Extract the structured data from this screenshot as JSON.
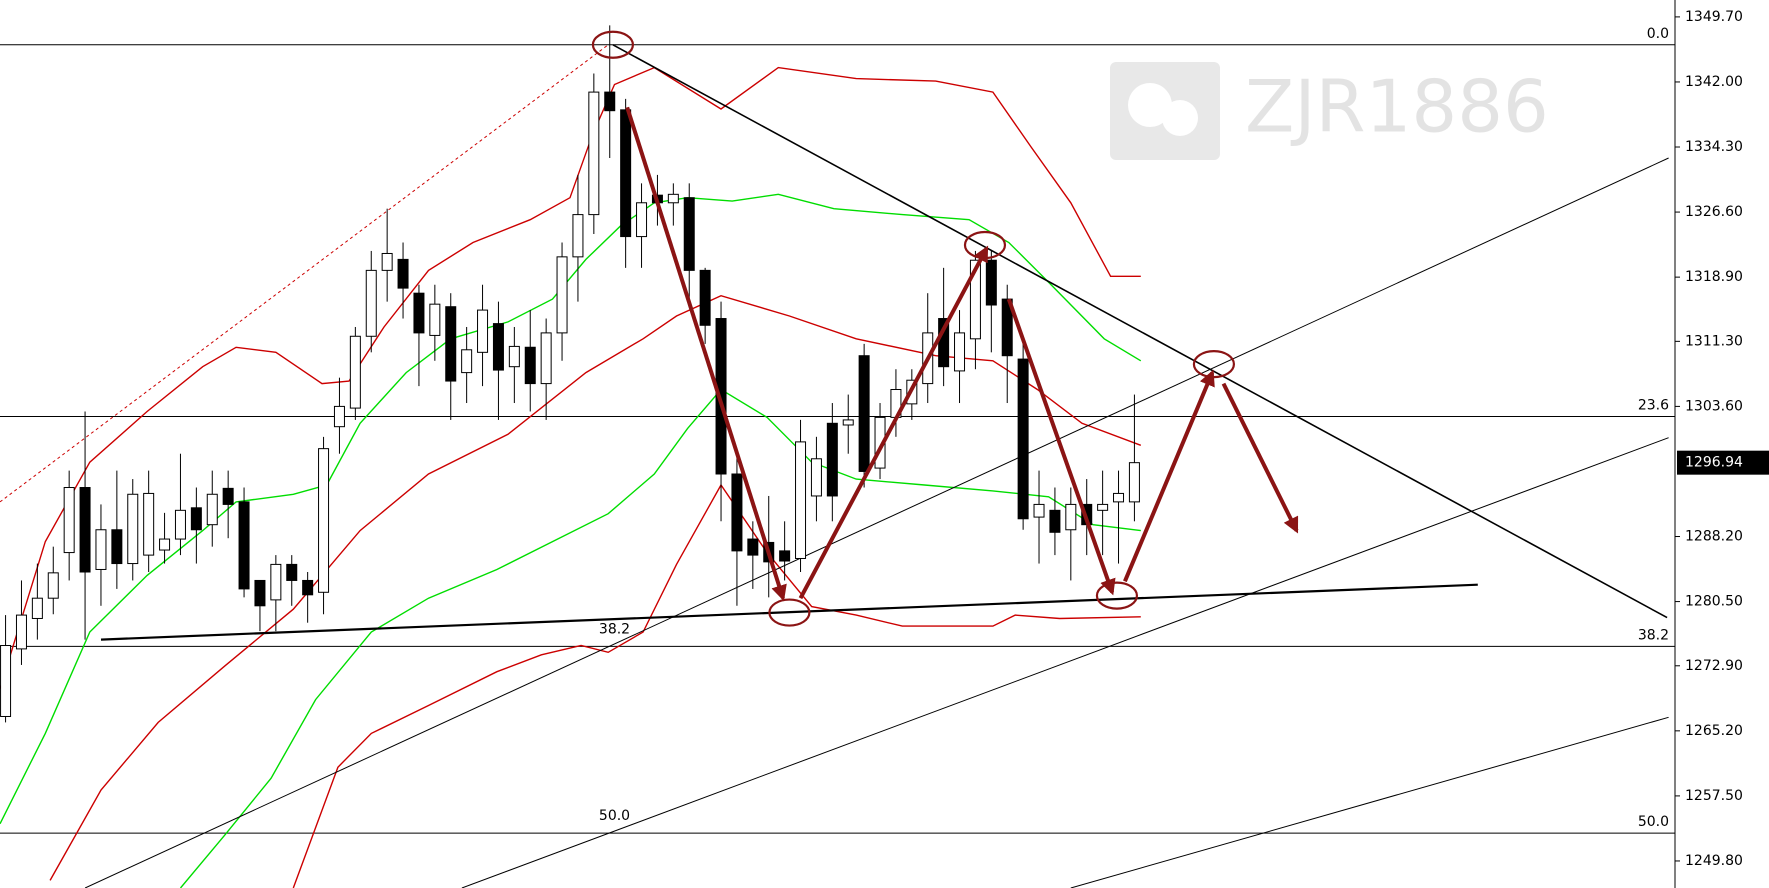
{
  "chart_data": {
    "type": "candlestick",
    "watermark": "ZJR1886",
    "xlim": [
      -0.35,
      105.0
    ],
    "ylim": [
      1246.6,
      1351.7
    ],
    "yticks": [
      {
        "value": 1349.7,
        "label": "1349.70"
      },
      {
        "value": 1342.0,
        "label": "1342.00"
      },
      {
        "value": 1334.3,
        "label": "1334.30"
      },
      {
        "value": 1326.6,
        "label": "1326.60"
      },
      {
        "value": 1318.9,
        "label": "1318.90"
      },
      {
        "value": 1311.3,
        "label": "1311.30"
      },
      {
        "value": 1303.6,
        "label": "1303.60"
      },
      {
        "value": 1288.2,
        "label": "1288.20"
      },
      {
        "value": 1280.5,
        "label": "1280.50"
      },
      {
        "value": 1272.9,
        "label": "1272.90"
      },
      {
        "value": 1265.2,
        "label": "1265.20"
      },
      {
        "value": 1257.5,
        "label": "1257.50"
      },
      {
        "value": 1249.8,
        "label": "1249.80"
      }
    ],
    "last_price": 1296.94,
    "up_color": "#ffffff",
    "down_color": "#000000",
    "open": [
      1266.9,
      1274.9,
      1278.5,
      1280.9,
      1286.3,
      1294.0,
      1284.3,
      1289.0,
      1285.0,
      1286.0,
      1286.6,
      1287.9,
      1291.6,
      1289.6,
      1293.9,
      1292.3,
      1283.0,
      1280.7,
      1284.9,
      1283.0,
      1281.6,
      1301.2,
      1303.4,
      1311.9,
      1319.7,
      1321.0,
      1317.0,
      1312.0,
      1315.4,
      1307.6,
      1310.0,
      1313.4,
      1308.3,
      1310.6,
      1306.3,
      1312.3,
      1321.3,
      1326.3,
      1340.8,
      1338.7,
      1323.7,
      1328.6,
      1327.7,
      1328.3,
      1319.7,
      1314.0,
      1295.6,
      1287.9,
      1287.5,
      1286.5,
      1285.6,
      1293.0,
      1301.6,
      1301.4,
      1309.6,
      1296.3,
      1302.3,
      1303.9,
      1306.3,
      1314.0,
      1307.8,
      1311.6,
      1320.9,
      1316.3,
      1309.2,
      1290.5,
      1291.3,
      1289.0,
      1292.0,
      1291.3,
      1292.3,
      1292.3
    ],
    "high": [
      1278.9,
      1283.0,
      1285.0,
      1287.0,
      1296.0,
      1303.0,
      1292.0,
      1296.0,
      1295.0,
      1296.0,
      1291.0,
      1298.0,
      1294.0,
      1296.0,
      1296.0,
      1294.0,
      1283.0,
      1286.0,
      1286.0,
      1284.0,
      1300.0,
      1307.0,
      1313.0,
      1322.0,
      1327.0,
      1323.0,
      1318.0,
      1318.0,
      1317.0,
      1313.0,
      1318.0,
      1316.0,
      1313.0,
      1315.0,
      1314.0,
      1323.0,
      1331.0,
      1343.0,
      1348.7,
      1340.0,
      1330.0,
      1331.0,
      1330.0,
      1330.0,
      1320.0,
      1316.0,
      1298.0,
      1290.0,
      1293.0,
      1290.0,
      1302.0,
      1300.0,
      1304.0,
      1305.0,
      1311.0,
      1304.0,
      1308.0,
      1308.0,
      1317.0,
      1320.0,
      1315.0,
      1322.0,
      1322.0,
      1318.0,
      1311.0,
      1296.0,
      1294.0,
      1294.0,
      1295.0,
      1296.0,
      1296.0,
      1305.0
    ],
    "low": [
      1266.2,
      1273.0,
      1276.0,
      1279.0,
      1283.0,
      1276.0,
      1280.0,
      1282.0,
      1283.0,
      1284.0,
      1285.0,
      1286.0,
      1285.0,
      1287.0,
      1288.0,
      1281.0,
      1277.0,
      1277.0,
      1280.0,
      1278.0,
      1279.0,
      1298.0,
      1302.0,
      1310.0,
      1316.0,
      1314.0,
      1306.0,
      1309.0,
      1302.0,
      1304.0,
      1306.0,
      1302.0,
      1304.0,
      1303.0,
      1302.0,
      1309.0,
      1316.0,
      1324.0,
      1333.0,
      1320.0,
      1320.0,
      1325.0,
      1325.0,
      1316.0,
      1311.0,
      1290.0,
      1280.0,
      1282.0,
      1281.0,
      1283.0,
      1284.0,
      1290.0,
      1290.0,
      1298.0,
      1294.0,
      1295.0,
      1300.0,
      1302.0,
      1304.0,
      1306.0,
      1304.0,
      1308.0,
      1310.0,
      1304.0,
      1289.0,
      1285.0,
      1286.0,
      1283.0,
      1286.0,
      1286.0,
      1285.0,
      1290.0
    ],
    "close": [
      1275.3,
      1278.9,
      1280.9,
      1283.9,
      1294.0,
      1284.0,
      1289.0,
      1285.0,
      1293.2,
      1293.3,
      1287.9,
      1291.3,
      1289.0,
      1293.2,
      1292.0,
      1282.0,
      1280.0,
      1284.9,
      1283.0,
      1281.3,
      1298.6,
      1303.6,
      1311.9,
      1319.7,
      1321.7,
      1317.6,
      1312.3,
      1315.7,
      1306.6,
      1310.3,
      1315.0,
      1307.9,
      1310.7,
      1306.3,
      1312.3,
      1321.3,
      1326.3,
      1340.8,
      1338.6,
      1323.7,
      1327.7,
      1327.7,
      1328.7,
      1319.7,
      1313.2,
      1295.6,
      1286.5,
      1286.0,
      1285.2,
      1285.3,
      1299.4,
      1297.4,
      1293.0,
      1302.0,
      1295.9,
      1302.3,
      1305.6,
      1306.7,
      1312.3,
      1308.3,
      1312.3,
      1320.9,
      1315.6,
      1309.6,
      1290.3,
      1292.0,
      1288.7,
      1292.0,
      1289.6,
      1292.0,
      1293.3,
      1296.94
    ],
    "bands": [
      {
        "color": "#cc0000",
        "x": [
          -0.35,
          2.5,
          5.3,
          8.9,
          12.4,
          14.5,
          17.0,
          19.9,
          21.6,
          23.8,
          26.6,
          29.4,
          33.0,
          35.5,
          36.9,
          38.3,
          40.8,
          45.0,
          48.6,
          53.5,
          58.5,
          62.1,
          64.5,
          67.0,
          69.5,
          71.4
        ],
        "values": [
          1270.2,
          1287.6,
          1297.0,
          1303.0,
          1308.3,
          1310.6,
          1310.0,
          1306.3,
          1306.6,
          1313.0,
          1319.7,
          1323.0,
          1325.7,
          1328.3,
          1335.7,
          1341.7,
          1343.7,
          1338.8,
          1343.7,
          1342.4,
          1342.1,
          1340.8,
          1334.3,
          1327.7,
          1319.0,
          1319.0
        ]
      },
      {
        "color": "#cc0000",
        "x": [
          2.8,
          6.0,
          9.6,
          13.8,
          18.1,
          22.3,
          26.6,
          31.6,
          36.5,
          40.1,
          42.2,
          45.0,
          49.3,
          53.5,
          58.5,
          62.1,
          64.9,
          67.7,
          71.4
        ],
        "values": [
          1247.5,
          1258.2,
          1266.2,
          1272.9,
          1279.6,
          1288.9,
          1295.6,
          1300.3,
          1307.6,
          1311.6,
          1314.3,
          1316.7,
          1314.3,
          1311.6,
          1309.6,
          1309.0,
          1305.6,
          1301.6,
          1299.0
        ]
      },
      {
        "color": "#cc0000",
        "x": [
          18.1,
          20.9,
          23.0,
          26.6,
          30.9,
          33.7,
          36.2,
          37.9,
          40.1,
          42.2,
          45.0,
          47.9,
          50.7,
          53.5,
          56.4,
          62.1,
          63.5,
          66.3,
          71.4
        ],
        "values": [
          1246.6,
          1260.9,
          1264.9,
          1268.2,
          1272.2,
          1274.2,
          1275.3,
          1274.5,
          1276.9,
          1284.9,
          1294.3,
          1286.3,
          1279.9,
          1278.9,
          1277.6,
          1277.6,
          1278.9,
          1278.5,
          1278.7
        ]
      },
      {
        "color": "#00dd00",
        "x": [
          -0.35,
          2.5,
          5.3,
          8.9,
          12.4,
          14.5,
          18.1,
          20.2,
          22.3,
          25.2,
          28.0,
          31.6,
          34.4,
          36.5,
          38.7,
          40.8,
          42.9,
          45.7,
          48.6,
          52.1,
          56.4,
          60.6,
          63.1,
          65.6,
          69.1,
          71.4
        ],
        "values": [
          1254.2,
          1264.9,
          1276.9,
          1283.6,
          1288.9,
          1292.3,
          1293.2,
          1294.3,
          1301.6,
          1307.6,
          1311.6,
          1313.6,
          1316.3,
          1321.0,
          1325.0,
          1327.7,
          1328.3,
          1327.9,
          1328.7,
          1327.0,
          1326.3,
          1325.7,
          1323.0,
          1318.3,
          1311.6,
          1309.0
        ]
      },
      {
        "color": "#00dd00",
        "x": [
          11.0,
          13.8,
          16.7,
          19.5,
          23.0,
          26.6,
          30.9,
          34.4,
          37.9,
          40.8,
          42.9,
          45.0,
          47.9,
          50.7,
          53.5,
          57.8,
          62.1,
          65.6,
          68.4,
          71.4
        ],
        "values": [
          1246.6,
          1252.9,
          1259.6,
          1268.9,
          1276.9,
          1280.9,
          1284.3,
          1287.6,
          1290.9,
          1295.6,
          1301.0,
          1305.6,
          1302.3,
          1297.0,
          1295.0,
          1294.3,
          1293.6,
          1292.9,
          1289.6,
          1288.9
        ]
      }
    ],
    "levels": [
      {
        "label": "0.0",
        "value": 1346.4
      },
      {
        "label": "23.6",
        "value": 1302.4
      },
      {
        "label": "38.2",
        "value": 1275.2
      },
      {
        "label": "50.0",
        "value": 1253.1
      }
    ],
    "annotations": [
      {
        "text": "38.2",
        "x": 38.3,
        "y": 1277.2
      },
      {
        "text": "50.0",
        "x": 38.3,
        "y": 1255.1
      }
    ],
    "trendlines": [
      {
        "color": "#000000",
        "width": 1.6,
        "x": [
          38.2,
          104.5
        ],
        "values": [
          1346.4,
          1278.6
        ]
      },
      {
        "color": "#000000",
        "width": 2.2,
        "x": [
          6.0,
          92.6
        ],
        "values": [
          1276.0,
          1282.5
        ]
      },
      {
        "color": "#000000",
        "width": 1,
        "x": [
          5.0,
          104.6
        ],
        "values": [
          1246.6,
          1333.0
        ]
      },
      {
        "color": "#000000",
        "width": 1,
        "x": [
          28.7,
          104.6
        ],
        "values": [
          1246.6,
          1299.9
        ]
      },
      {
        "color": "#000000",
        "width": 1,
        "x": [
          67.0,
          104.6
        ],
        "values": [
          1246.6,
          1266.8
        ]
      },
      {
        "color": "#cc0000",
        "width": 1,
        "dashed": true,
        "x": [
          -0.35,
          37.9
        ],
        "values": [
          1292.3,
          1346.4
        ]
      }
    ],
    "arrows": [
      {
        "x": [
          39.1,
          48.9
        ],
        "values": [
          1339.0,
          1280.9
        ]
      },
      {
        "x": [
          50.0,
          61.7
        ],
        "values": [
          1280.9,
          1322.3
        ]
      },
      {
        "x": [
          63.1,
          69.6
        ],
        "values": [
          1316.3,
          1281.6
        ]
      },
      {
        "x": [
          70.4,
          75.9
        ],
        "values": [
          1282.9,
          1307.6
        ]
      },
      {
        "x": [
          76.6,
          81.2
        ],
        "values": [
          1306.3,
          1288.9
        ]
      }
    ],
    "arrow_color": "#8b1414",
    "circles": {
      "x": [
        38.2,
        49.3,
        61.6,
        69.9,
        76.0
      ],
      "values": [
        1346.4,
        1279.2,
        1322.7,
        1281.2,
        1308.6
      ]
    }
  }
}
